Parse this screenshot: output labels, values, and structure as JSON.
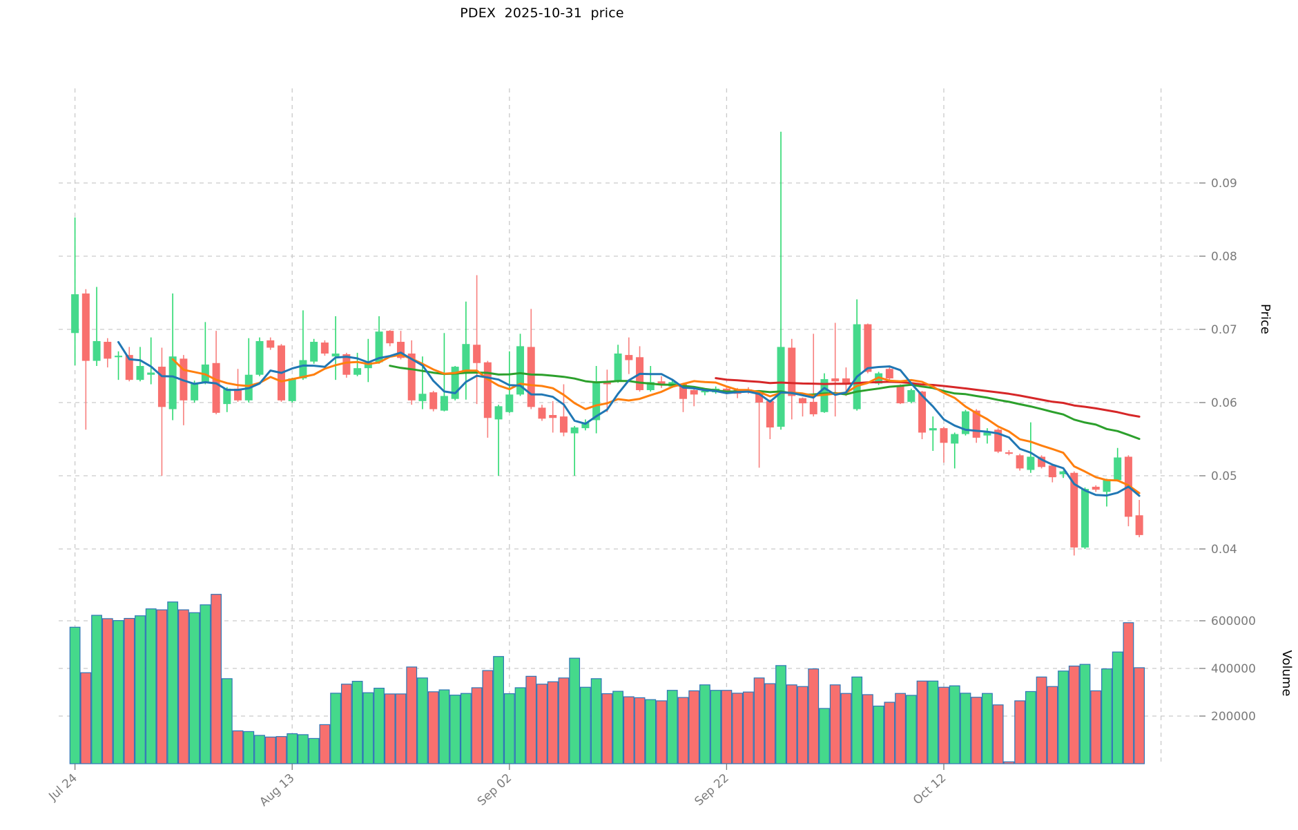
{
  "title": "PDEX  2025-10-31  price",
  "price_axis": {
    "label": "Price",
    "ticks": [
      "0.09",
      "0.08",
      "0.07",
      "0.06",
      "0.05",
      "0.04"
    ],
    "tick_values": [
      0.09,
      0.08,
      0.07,
      0.06,
      0.05,
      0.04
    ]
  },
  "volume_axis": {
    "label": "Volume",
    "ticks": [
      "600000",
      "400000",
      "200000"
    ],
    "tick_values": [
      600000,
      400000,
      200000
    ]
  },
  "x_axis": {
    "tick_labels": [
      "Jul 24",
      "Aug 13",
      "Sep 02",
      "Sep 22",
      "Oct 12"
    ],
    "tick_indices": [
      0,
      20,
      40,
      60,
      80
    ],
    "unlabeled_gridline_index": 100
  },
  "colors": {
    "up_body": "#45D98B",
    "up_wick": "#2BD96F",
    "down_body": "#F8706E",
    "down_wick": "#F87F7D",
    "volume_edge": "#2E75B6",
    "ma5": "#2077B4",
    "ma10": "#FF7F0E",
    "ma30": "#2CA02C",
    "ma60": "#D62728",
    "grid": "#C9C9C9",
    "tick_text": "#7A7A7A",
    "title_text": "#000000"
  },
  "chart_data": {
    "type": "candlestick",
    "subpanels": [
      "price",
      "volume"
    ],
    "grid": true,
    "price_ylim": [
      0.037,
      0.101
    ],
    "volume_ylim": [
      0,
      740000
    ],
    "moving_averages": [
      {
        "name": "MA5",
        "period": 5,
        "color_key": "ma5"
      },
      {
        "name": "MA10",
        "period": 10,
        "color_key": "ma10"
      },
      {
        "name": "MA30",
        "period": 30,
        "color_key": "ma30"
      },
      {
        "name": "MA60",
        "period": 60,
        "color_key": "ma60"
      }
    ],
    "dates": [
      "Jul 24",
      "Jul 25",
      "Jul 26",
      "Jul 27",
      "Jul 28",
      "Jul 29",
      "Jul 30",
      "Jul 31",
      "Aug 01",
      "Aug 02",
      "Aug 03",
      "Aug 04",
      "Aug 05",
      "Aug 06",
      "Aug 07",
      "Aug 08",
      "Aug 09",
      "Aug 10",
      "Aug 11",
      "Aug 12",
      "Aug 13",
      "Aug 14",
      "Aug 15",
      "Aug 16",
      "Aug 17",
      "Aug 18",
      "Aug 19",
      "Aug 20",
      "Aug 21",
      "Aug 22",
      "Aug 23",
      "Aug 24",
      "Aug 25",
      "Aug 26",
      "Aug 27",
      "Aug 28",
      "Aug 29",
      "Aug 30",
      "Aug 31",
      "Sep 01",
      "Sep 02",
      "Sep 03",
      "Sep 04",
      "Sep 05",
      "Sep 06",
      "Sep 07",
      "Sep 08",
      "Sep 09",
      "Sep 10",
      "Sep 11",
      "Sep 12",
      "Sep 13",
      "Sep 14",
      "Sep 15",
      "Sep 16",
      "Sep 17",
      "Sep 18",
      "Sep 19",
      "Sep 20",
      "Sep 21",
      "Sep 22",
      "Sep 23",
      "Sep 24",
      "Sep 25",
      "Sep 26",
      "Sep 27",
      "Sep 28",
      "Sep 29",
      "Sep 30",
      "Oct 01",
      "Oct 02",
      "Oct 03",
      "Oct 04",
      "Oct 05",
      "Oct 06",
      "Oct 07",
      "Oct 08",
      "Oct 09",
      "Oct 10",
      "Oct 11",
      "Oct 12",
      "Oct 13",
      "Oct 14",
      "Oct 15",
      "Oct 16",
      "Oct 17",
      "Oct 18",
      "Oct 19",
      "Oct 20",
      "Oct 21",
      "Oct 22",
      "Oct 23",
      "Oct 24",
      "Oct 25",
      "Oct 26",
      "Oct 27",
      "Oct 28",
      "Oct 29",
      "Oct 30"
    ],
    "ohlcv": [
      [
        0.0695,
        0.0853,
        0.0651,
        0.0748,
        573000
      ],
      [
        0.0749,
        0.0755,
        0.0563,
        0.0657,
        382000
      ],
      [
        0.0657,
        0.0758,
        0.065,
        0.0684,
        623000
      ],
      [
        0.0683,
        0.0688,
        0.0648,
        0.066,
        609000
      ],
      [
        0.0662,
        0.067,
        0.0631,
        0.0664,
        601000
      ],
      [
        0.0665,
        0.0676,
        0.0629,
        0.0631,
        610000
      ],
      [
        0.0631,
        0.0676,
        0.0629,
        0.065,
        621000
      ],
      [
        0.0638,
        0.0689,
        0.0625,
        0.0641,
        650000
      ],
      [
        0.0649,
        0.0675,
        0.05,
        0.0594,
        646000
      ],
      [
        0.0591,
        0.0749,
        0.0576,
        0.0663,
        679000
      ],
      [
        0.066,
        0.0665,
        0.0569,
        0.0603,
        646000
      ],
      [
        0.0603,
        0.063,
        0.06,
        0.0627,
        634000
      ],
      [
        0.0627,
        0.071,
        0.0625,
        0.0652,
        667000
      ],
      [
        0.0654,
        0.0698,
        0.0584,
        0.0586,
        711000
      ],
      [
        0.0598,
        0.0621,
        0.0587,
        0.0619,
        357000
      ],
      [
        0.0619,
        0.0646,
        0.0601,
        0.0603,
        138000
      ],
      [
        0.0603,
        0.0688,
        0.06,
        0.0638,
        135000
      ],
      [
        0.0638,
        0.0689,
        0.0636,
        0.0684,
        119000
      ],
      [
        0.0685,
        0.0689,
        0.0672,
        0.0675,
        112000
      ],
      [
        0.0678,
        0.068,
        0.0601,
        0.0603,
        114000
      ],
      [
        0.0602,
        0.0634,
        0.06,
        0.0633,
        126000
      ],
      [
        0.0633,
        0.0726,
        0.0631,
        0.0658,
        122000
      ],
      [
        0.0656,
        0.0687,
        0.0653,
        0.0683,
        106000
      ],
      [
        0.0682,
        0.0685,
        0.0664,
        0.0667,
        164000
      ],
      [
        0.0663,
        0.0718,
        0.0631,
        0.0667,
        296000
      ],
      [
        0.0666,
        0.0668,
        0.0634,
        0.0638,
        334000
      ],
      [
        0.0638,
        0.0668,
        0.0636,
        0.0647,
        346000
      ],
      [
        0.0647,
        0.0687,
        0.0628,
        0.0655,
        298000
      ],
      [
        0.0655,
        0.0718,
        0.0653,
        0.0697,
        317000
      ],
      [
        0.0698,
        0.0699,
        0.0677,
        0.0681,
        293000
      ],
      [
        0.0683,
        0.0698,
        0.0659,
        0.0661,
        293000
      ],
      [
        0.0667,
        0.0685,
        0.0597,
        0.0603,
        406000
      ],
      [
        0.0602,
        0.0663,
        0.0591,
        0.0612,
        360000
      ],
      [
        0.0614,
        0.0616,
        0.0588,
        0.0591,
        302000
      ],
      [
        0.0589,
        0.0695,
        0.0588,
        0.0609,
        310000
      ],
      [
        0.0605,
        0.065,
        0.0603,
        0.0649,
        288000
      ],
      [
        0.0642,
        0.0738,
        0.0604,
        0.068,
        295000
      ],
      [
        0.0679,
        0.0774,
        0.0598,
        0.0654,
        319000
      ],
      [
        0.0655,
        0.0657,
        0.0552,
        0.0579,
        391000
      ],
      [
        0.0577,
        0.0597,
        0.05,
        0.0595,
        450000
      ],
      [
        0.0587,
        0.067,
        0.0586,
        0.0611,
        294000
      ],
      [
        0.0611,
        0.0694,
        0.0609,
        0.0677,
        319000
      ],
      [
        0.0676,
        0.0728,
        0.0591,
        0.0594,
        367000
      ],
      [
        0.0593,
        0.0597,
        0.0575,
        0.0578,
        334000
      ],
      [
        0.0583,
        0.0602,
        0.0559,
        0.0579,
        344000
      ],
      [
        0.0581,
        0.0625,
        0.0554,
        0.0559,
        360000
      ],
      [
        0.0558,
        0.0568,
        0.05,
        0.0566,
        443000
      ],
      [
        0.0565,
        0.0577,
        0.0562,
        0.0573,
        321000
      ],
      [
        0.0576,
        0.065,
        0.0558,
        0.0629,
        357000
      ],
      [
        0.0629,
        0.0645,
        0.0587,
        0.0625,
        294000
      ],
      [
        0.0629,
        0.0679,
        0.0627,
        0.0667,
        304000
      ],
      [
        0.0665,
        0.0689,
        0.0639,
        0.0658,
        281000
      ],
      [
        0.0662,
        0.0677,
        0.0615,
        0.0617,
        277000
      ],
      [
        0.0617,
        0.065,
        0.0615,
        0.0628,
        269000
      ],
      [
        0.0629,
        0.0636,
        0.062,
        0.0625,
        264000
      ],
      [
        0.0622,
        0.0631,
        0.062,
        0.0628,
        308000
      ],
      [
        0.0625,
        0.0627,
        0.0587,
        0.0605,
        278000
      ],
      [
        0.0617,
        0.0619,
        0.0595,
        0.0611,
        306000
      ],
      [
        0.0614,
        0.0618,
        0.061,
        0.0616,
        331000
      ],
      [
        0.0614,
        0.0622,
        0.0612,
        0.0619,
        308000
      ],
      [
        0.0619,
        0.0621,
        0.0611,
        0.0613,
        308000
      ],
      [
        0.0618,
        0.062,
        0.0606,
        0.0612,
        296000
      ],
      [
        0.0618,
        0.0621,
        0.0612,
        0.0615,
        301000
      ],
      [
        0.0612,
        0.0614,
        0.0511,
        0.06,
        360000
      ],
      [
        0.0602,
        0.0604,
        0.055,
        0.0566,
        336000
      ],
      [
        0.0567,
        0.097,
        0.0563,
        0.0676,
        412000
      ],
      [
        0.0675,
        0.0687,
        0.0577,
        0.0609,
        331000
      ],
      [
        0.0606,
        0.0607,
        0.0581,
        0.0599,
        324000
      ],
      [
        0.0601,
        0.0694,
        0.0581,
        0.0584,
        398000
      ],
      [
        0.0587,
        0.064,
        0.0586,
        0.0632,
        232000
      ],
      [
        0.0633,
        0.0709,
        0.0581,
        0.0629,
        331000
      ],
      [
        0.0633,
        0.0648,
        0.0609,
        0.0625,
        295000
      ],
      [
        0.0591,
        0.0741,
        0.0589,
        0.0707,
        364000
      ],
      [
        0.0707,
        0.0708,
        0.064,
        0.0642,
        290000
      ],
      [
        0.0626,
        0.0642,
        0.0624,
        0.064,
        242000
      ],
      [
        0.0646,
        0.0649,
        0.0631,
        0.0633,
        258000
      ],
      [
        0.0623,
        0.0625,
        0.0598,
        0.0599,
        295000
      ],
      [
        0.0601,
        0.0619,
        0.0599,
        0.0617,
        287000
      ],
      [
        0.0615,
        0.0616,
        0.055,
        0.0559,
        347000
      ],
      [
        0.0562,
        0.0581,
        0.0534,
        0.0565,
        347000
      ],
      [
        0.0565,
        0.0567,
        0.0518,
        0.0545,
        321000
      ],
      [
        0.0544,
        0.0559,
        0.051,
        0.0557,
        327000
      ],
      [
        0.0557,
        0.059,
        0.0555,
        0.0588,
        296000
      ],
      [
        0.0589,
        0.0591,
        0.0545,
        0.0552,
        279000
      ],
      [
        0.0555,
        0.0565,
        0.0544,
        0.0559,
        295000
      ],
      [
        0.0563,
        0.0565,
        0.0531,
        0.0533,
        247000
      ],
      [
        0.0532,
        0.0535,
        0.0528,
        0.053,
        8000
      ],
      [
        0.0528,
        0.053,
        0.0507,
        0.051,
        264000
      ],
      [
        0.0508,
        0.0573,
        0.0504,
        0.0526,
        303000
      ],
      [
        0.0526,
        0.0528,
        0.051,
        0.0512,
        364000
      ],
      [
        0.0514,
        0.0516,
        0.0491,
        0.0498,
        324000
      ],
      [
        0.0502,
        0.0507,
        0.0497,
        0.0506,
        389000
      ],
      [
        0.0504,
        0.0506,
        0.0391,
        0.0402,
        410000
      ],
      [
        0.0402,
        0.0484,
        0.04,
        0.0482,
        417000
      ],
      [
        0.0485,
        0.0487,
        0.0478,
        0.0481,
        306000
      ],
      [
        0.0478,
        0.0496,
        0.0458,
        0.0494,
        398000
      ],
      [
        0.0494,
        0.0538,
        0.0492,
        0.0525,
        469000
      ],
      [
        0.0526,
        0.0528,
        0.0431,
        0.0444,
        592000
      ],
      [
        0.0446,
        0.0467,
        0.0416,
        0.0419,
        403000
      ]
    ]
  }
}
